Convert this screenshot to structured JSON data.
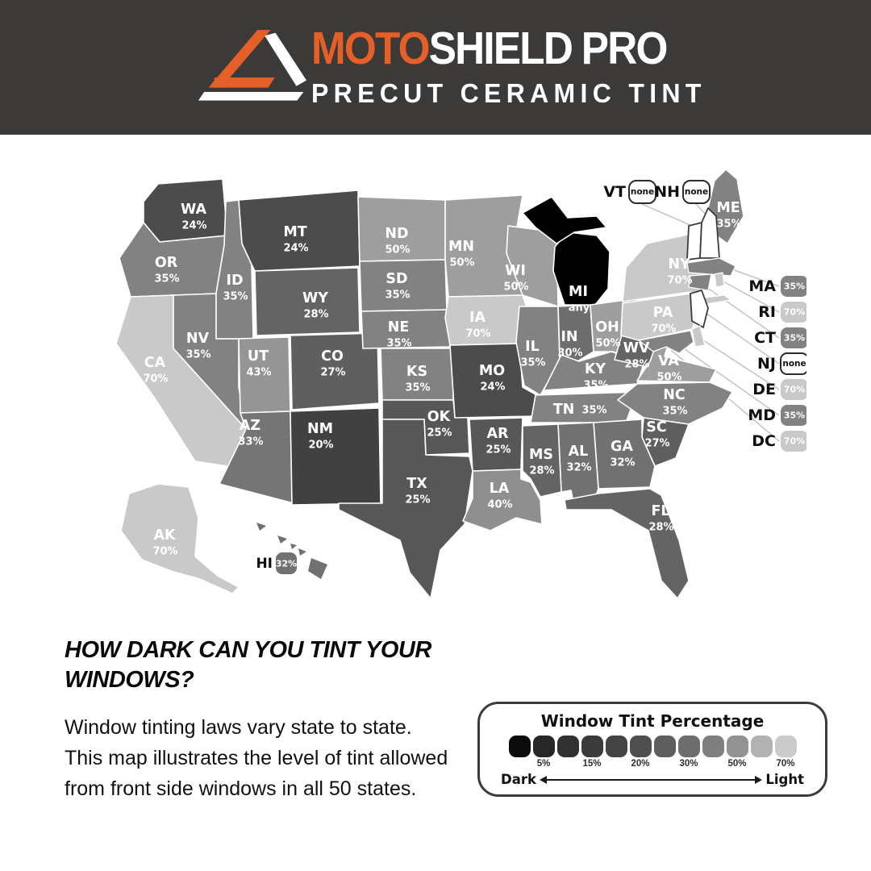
{
  "header": {
    "bg": "#3b3a39",
    "accent": "#e55f26",
    "brand_prefix": "MOTO",
    "brand_mid": "SHIELD",
    "brand_suffix": "PRO",
    "tagline": "PRECUT CERAMIC TINT"
  },
  "map": {
    "shade_by_value": {
      "none": "#ffffff",
      "any": "#000000",
      "20%": "#414141",
      "24%": "#4c4c4c",
      "25%": "#575757",
      "27%": "#5f5f5f",
      "28%": "#646464",
      "30%": "#6d6d6d",
      "32%": "#717171",
      "33%": "#757575",
      "35%": "#828282",
      "40%": "#8f8f8f",
      "43%": "#959595",
      "50%": "#9e9e9e",
      "70%": "#c9c9c9"
    },
    "states": [
      {
        "id": "WA",
        "value": "24%"
      },
      {
        "id": "OR",
        "value": "35%"
      },
      {
        "id": "CA",
        "value": "70%"
      },
      {
        "id": "NV",
        "value": "35%"
      },
      {
        "id": "ID",
        "value": "35%"
      },
      {
        "id": "MT",
        "value": "24%"
      },
      {
        "id": "WY",
        "value": "28%"
      },
      {
        "id": "UT",
        "value": "43%"
      },
      {
        "id": "CO",
        "value": "27%"
      },
      {
        "id": "AZ",
        "value": "33%"
      },
      {
        "id": "NM",
        "value": "20%"
      },
      {
        "id": "ND",
        "value": "50%"
      },
      {
        "id": "SD",
        "value": "35%"
      },
      {
        "id": "NE",
        "value": "35%"
      },
      {
        "id": "KS",
        "value": "35%"
      },
      {
        "id": "OK",
        "value": "25%"
      },
      {
        "id": "TX",
        "value": "25%"
      },
      {
        "id": "MN",
        "value": "50%"
      },
      {
        "id": "IA",
        "value": "70%"
      },
      {
        "id": "MO",
        "value": "24%"
      },
      {
        "id": "AR",
        "value": "25%"
      },
      {
        "id": "LA",
        "value": "40%"
      },
      {
        "id": "WI",
        "value": "50%"
      },
      {
        "id": "IL",
        "value": "35%"
      },
      {
        "id": "IN",
        "value": "30%"
      },
      {
        "id": "MI",
        "value": "any"
      },
      {
        "id": "OH",
        "value": "50%"
      },
      {
        "id": "KY",
        "value": "35%"
      },
      {
        "id": "TN",
        "value": "35%"
      },
      {
        "id": "WV",
        "value": "28%"
      },
      {
        "id": "VA",
        "value": "50%"
      },
      {
        "id": "NC",
        "value": "35%"
      },
      {
        "id": "SC",
        "value": "27%"
      },
      {
        "id": "GA",
        "value": "32%"
      },
      {
        "id": "AL",
        "value": "32%"
      },
      {
        "id": "MS",
        "value": "28%"
      },
      {
        "id": "FL",
        "value": "28%"
      },
      {
        "id": "PA",
        "value": "70%"
      },
      {
        "id": "NY",
        "value": "70%"
      },
      {
        "id": "ME",
        "value": "35%"
      },
      {
        "id": "AK",
        "value": "70%"
      }
    ],
    "callouts_top": [
      {
        "id": "VT",
        "value": "none"
      },
      {
        "id": "NH",
        "value": "none"
      }
    ],
    "callouts_right": [
      {
        "id": "MA",
        "value": "35%"
      },
      {
        "id": "RI",
        "value": "70%"
      },
      {
        "id": "CT",
        "value": "35%"
      },
      {
        "id": "NJ",
        "value": "none"
      },
      {
        "id": "DE",
        "value": "70%"
      },
      {
        "id": "MD",
        "value": "35%"
      },
      {
        "id": "DC",
        "value": "70%"
      }
    ],
    "hawaii": {
      "id": "HI",
      "value": "32%"
    }
  },
  "section": {
    "heading_line1": "HOW DARK CAN YOU TINT YOUR",
    "heading_line2": "WINDOWS?",
    "body": "Window tinting laws vary state to state. This map illustrates the level of tint allowed from front side windows in all 50 states."
  },
  "legend": {
    "title": "Window Tint Percentage",
    "swatches": [
      "#0b0b0b",
      "#272727",
      "#313131",
      "#3b3b3b",
      "#444444",
      "#4f4f4f",
      "#5e5e5e",
      "#6d6d6d",
      "#7f7f7f",
      "#929292",
      "#b2b2b2",
      "#cbcbcb"
    ],
    "tick_labels": [
      "5%",
      "15%",
      "20%",
      "30%",
      "50%",
      "70%"
    ],
    "dark_label": "Dark",
    "light_label": "Light"
  }
}
